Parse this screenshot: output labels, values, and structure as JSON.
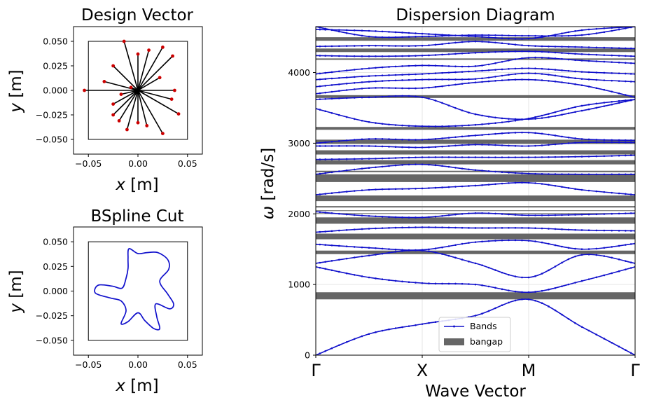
{
  "chart_data": [
    {
      "type": "scatter",
      "title": "Design Vector",
      "xlabel_var": "x",
      "xlabel_unit": "[m]",
      "ylabel_var": "y",
      "ylabel_unit": "[m]",
      "xlim": [
        -0.065,
        0.065
      ],
      "ylim": [
        -0.065,
        0.065
      ],
      "xticks": [
        "-0.05",
        "0.00",
        "0.05"
      ],
      "yticks": [
        "0.050",
        "0.025",
        "0.000",
        "-0.025",
        "-0.050"
      ],
      "box": [
        -0.05,
        0.05
      ],
      "center": [
        0,
        0
      ],
      "colors": {
        "spoke": "#000000",
        "point": "#cc0000"
      },
      "points": [
        [
          -0.014,
          0.05
        ],
        [
          0.0,
          0.037
        ],
        [
          0.011,
          0.041
        ],
        [
          0.025,
          0.044
        ],
        [
          0.035,
          0.035
        ],
        [
          0.022,
          0.013
        ],
        [
          0.037,
          0.0
        ],
        [
          0.034,
          -0.009
        ],
        [
          0.041,
          -0.024
        ],
        [
          0.025,
          -0.044
        ],
        [
          0.009,
          -0.036
        ],
        [
          0.0,
          -0.033
        ],
        [
          -0.011,
          -0.04
        ],
        [
          -0.019,
          -0.031
        ],
        [
          -0.025,
          -0.025
        ],
        [
          -0.025,
          -0.014
        ],
        [
          -0.017,
          -0.004
        ],
        [
          -0.034,
          0.009
        ],
        [
          -0.054,
          0.0
        ],
        [
          -0.025,
          0.025
        ],
        [
          -0.007,
          0.003
        ]
      ]
    },
    {
      "type": "line",
      "title": "BSpline Cut",
      "xlabel_var": "x",
      "xlabel_unit": "[m]",
      "ylabel_var": "y",
      "ylabel_unit": "[m]",
      "xlim": [
        -0.065,
        0.065
      ],
      "ylim": [
        -0.065,
        0.065
      ],
      "xticks": [
        "-0.05",
        "0.00",
        "0.05"
      ],
      "yticks": [
        "0.050",
        "0.025",
        "0.000",
        "-0.025",
        "-0.050"
      ],
      "box": [
        -0.05,
        0.05
      ],
      "color": "#1111cc",
      "curve": [
        [
          -0.009,
          0.043
        ],
        [
          0.0,
          0.038
        ],
        [
          0.009,
          0.039
        ],
        [
          0.02,
          0.039
        ],
        [
          0.03,
          0.032
        ],
        [
          0.031,
          0.022
        ],
        [
          0.022,
          0.01
        ],
        [
          0.03,
          -0.003
        ],
        [
          0.036,
          -0.013
        ],
        [
          0.032,
          -0.018
        ],
        [
          0.018,
          -0.013
        ],
        [
          0.019,
          -0.026
        ],
        [
          0.022,
          -0.038
        ],
        [
          0.016,
          -0.038
        ],
        [
          0.007,
          -0.03
        ],
        [
          0.0,
          -0.022
        ],
        [
          -0.01,
          -0.031
        ],
        [
          -0.017,
          -0.033
        ],
        [
          -0.012,
          -0.02
        ],
        [
          -0.017,
          -0.01
        ],
        [
          -0.028,
          -0.007
        ],
        [
          -0.043,
          -0.002
        ],
        [
          -0.04,
          0.006
        ],
        [
          -0.026,
          0.005
        ],
        [
          -0.016,
          0.003
        ],
        [
          -0.012,
          0.013
        ],
        [
          -0.01,
          0.023
        ],
        [
          -0.01,
          0.033
        ],
        [
          -0.009,
          0.043
        ]
      ]
    },
    {
      "type": "line",
      "title": "Dispersion Diagram",
      "xlabel": "Wave Vector",
      "ylabel_var": "ω",
      "ylabel_unit": "[rad/s]",
      "ylim": [
        0,
        4650
      ],
      "yticks": [
        0,
        1000,
        2000,
        3000,
        4000
      ],
      "xticks": [
        "Γ",
        "X",
        "M",
        "Γ"
      ],
      "x": [
        0,
        1,
        2,
        3
      ],
      "legend": {
        "position": "lower-center",
        "bands_label": "Bands",
        "gap_label": "bangap"
      },
      "colors": {
        "band": "#1111cc",
        "gap": "#666666",
        "grid": "#e6e6e6"
      },
      "bandgaps": [
        [
          790,
          890
        ],
        [
          1430,
          1480
        ],
        [
          1640,
          1720
        ],
        [
          1860,
          1950
        ],
        [
          2000,
          2010
        ],
        [
          2040,
          2050
        ],
        [
          2090,
          2110
        ],
        [
          2180,
          2260
        ],
        [
          2450,
          2560
        ],
        [
          2590,
          2610
        ],
        [
          2700,
          2760
        ],
        [
          2840,
          2900
        ],
        [
          2990,
          3050
        ],
        [
          3190,
          3230
        ],
        [
          3640,
          3680
        ],
        [
          4180,
          4200
        ],
        [
          4290,
          4340
        ],
        [
          4450,
          4500
        ]
      ],
      "series": [
        {
          "x": [
            0,
            0.5,
            1,
            1.5,
            2,
            2.5,
            3
          ],
          "y": [
            0,
            300,
            440,
            560,
            790,
            400,
            0
          ]
        },
        {
          "x": [
            0,
            0.5,
            1,
            1.5,
            2,
            2.5,
            3
          ],
          "y": [
            1250,
            1100,
            1020,
            1000,
            890,
            1050,
            1250
          ]
        },
        {
          "x": [
            0,
            0.5,
            1,
            1.5,
            2,
            2.5,
            3
          ],
          "y": [
            1300,
            1410,
            1480,
            1300,
            1100,
            1420,
            1300
          ]
        },
        {
          "x": [
            0,
            0.5,
            1,
            1.5,
            2,
            2.5,
            3
          ],
          "y": [
            1570,
            1520,
            1490,
            1600,
            1620,
            1500,
            1580
          ]
        },
        {
          "x": [
            0,
            0.5,
            1,
            1.5,
            2,
            2.5,
            3
          ],
          "y": [
            2030,
            1970,
            1950,
            2010,
            1980,
            1990,
            2010
          ]
        },
        {
          "x": [
            0,
            0.5,
            1,
            1.5,
            2,
            2.5,
            3
          ],
          "y": [
            1740,
            1790,
            1810,
            1800,
            1800,
            1770,
            1760
          ]
        },
        {
          "x": [
            0,
            0.5,
            1,
            1.5,
            2,
            2.5,
            3
          ],
          "y": [
            2270,
            2340,
            2360,
            2400,
            2440,
            2340,
            2270
          ]
        },
        {
          "x": [
            0,
            0.5,
            1,
            1.5,
            2,
            2.5,
            3
          ],
          "y": [
            2560,
            2650,
            2700,
            2620,
            2570,
            2560,
            2560
          ]
        },
        {
          "x": [
            0,
            0.5,
            1,
            1.5,
            2,
            2.5,
            3
          ],
          "y": [
            2770,
            2780,
            2800,
            2800,
            2800,
            2810,
            2830
          ]
        },
        {
          "x": [
            0,
            0.5,
            1,
            1.5,
            2,
            2.5,
            3
          ],
          "y": [
            2960,
            2960,
            2940,
            2980,
            2960,
            3010,
            3010
          ]
        },
        {
          "x": [
            0,
            0.5,
            1,
            1.5,
            2,
            2.5,
            3
          ],
          "y": [
            3000,
            3060,
            3050,
            3110,
            3150,
            3060,
            3040
          ]
        },
        {
          "x": [
            0,
            0.5,
            1,
            1.5,
            2,
            2.5,
            3
          ],
          "y": [
            3490,
            3300,
            3240,
            3260,
            3350,
            3530,
            3620
          ]
        },
        {
          "x": [
            0,
            0.5,
            1,
            1.5,
            2,
            2.5,
            3
          ],
          "y": [
            3620,
            3650,
            3650,
            3410,
            3340,
            3460,
            3620
          ]
        },
        {
          "x": [
            0,
            0.5,
            1,
            1.5,
            2,
            2.5,
            3
          ],
          "y": [
            3700,
            3780,
            3780,
            3860,
            3900,
            3820,
            3650
          ]
        },
        {
          "x": [
            0,
            0.5,
            1,
            1.5,
            2,
            2.5,
            3
          ],
          "y": [
            3800,
            3870,
            3900,
            3910,
            3990,
            3910,
            3870
          ]
        },
        {
          "x": [
            0,
            0.5,
            1,
            1.5,
            2,
            2.5,
            3
          ],
          "y": [
            3900,
            3950,
            3980,
            4020,
            4060,
            4010,
            3980
          ]
        },
        {
          "x": [
            0,
            0.5,
            1,
            1.5,
            2,
            2.5,
            3
          ],
          "y": [
            3980,
            4060,
            4100,
            4090,
            4210,
            4170,
            4130
          ]
        },
        {
          "x": [
            0,
            0.5,
            1,
            1.5,
            2,
            2.5,
            3
          ],
          "y": [
            4240,
            4230,
            4240,
            4280,
            4300,
            4260,
            4230
          ]
        },
        {
          "x": [
            0,
            0.5,
            1,
            1.5,
            2,
            2.5,
            3
          ],
          "y": [
            4370,
            4380,
            4380,
            4440,
            4380,
            4360,
            4340
          ]
        },
        {
          "x": [
            0,
            0.5,
            1,
            1.5,
            2,
            2.5,
            3
          ],
          "y": [
            4650,
            4510,
            4510,
            4530,
            4520,
            4530,
            4650
          ]
        },
        {
          "x": [
            0,
            0.5,
            1,
            1.5,
            2,
            2.5,
            3
          ],
          "y": [
            4610,
            4590,
            4550,
            4510,
            4480,
            4600,
            4650
          ]
        }
      ]
    }
  ]
}
